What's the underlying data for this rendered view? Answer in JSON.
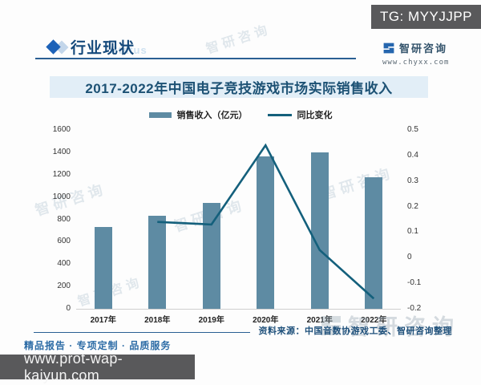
{
  "overlay": {
    "tg_label": "TG: MYYJJPP",
    "url_bar": "www.prot-wap-kaiyun.com"
  },
  "header": {
    "section_title": "行业现状",
    "section_watermark": "Status",
    "brand_name": "智研咨询",
    "brand_url": "www.chyxx.com"
  },
  "chart": {
    "title": "2017-2022年中国电子竞技游戏市场实际销售收入",
    "legend": {
      "bar_label": "销售收入（亿元）",
      "line_label": "同比变化"
    }
  },
  "chart_data": {
    "type": "bar+line",
    "title": "2017-2022年中国电子竞技游戏市场实际销售收入",
    "categories": [
      "2017年",
      "2018年",
      "2019年",
      "2020年",
      "2021年",
      "2022年"
    ],
    "series": [
      {
        "name": "销售收入（亿元）",
        "type": "bar",
        "axis": "left",
        "values": [
          730,
          834,
          947,
          1366,
          1402,
          1178
        ]
      },
      {
        "name": "同比变化",
        "type": "line",
        "axis": "right",
        "values": [
          null,
          0.14,
          0.13,
          0.44,
          0.03,
          -0.16
        ]
      }
    ],
    "left_axis": {
      "min": 0,
      "max": 1600,
      "ticks": [
        0,
        200,
        400,
        600,
        800,
        1000,
        1200,
        1400,
        1600
      ]
    },
    "right_axis": {
      "min": -0.2,
      "max": 0.5,
      "ticks": [
        0.5,
        0.4,
        0.3,
        0.2,
        0.1,
        0,
        -0.1,
        -0.2
      ],
      "tick_labels": [
        "0.5",
        "0.4",
        "0.3",
        "0.2",
        "0.1",
        "0",
        "-0.1",
        "-0.2"
      ]
    },
    "grid": false,
    "legend_position": "top"
  },
  "footer": {
    "tagline": "精品报告 · 专项定制 · 品质服务",
    "source": "资料来源：中国音数协游戏工委、智研咨询整理"
  },
  "watermark": {
    "brand_text": "智研咨询"
  },
  "colors": {
    "bar": "#5e8ba3",
    "line": "#14607c",
    "title_band_bg": "#e2eef7",
    "title_text": "#1c5174",
    "header_accent": "#1d62b8",
    "header_text": "#15497b",
    "overlay_bg": "#59595b",
    "footer_text": "#2d6ca6",
    "source_text": "#1d4f7a"
  }
}
